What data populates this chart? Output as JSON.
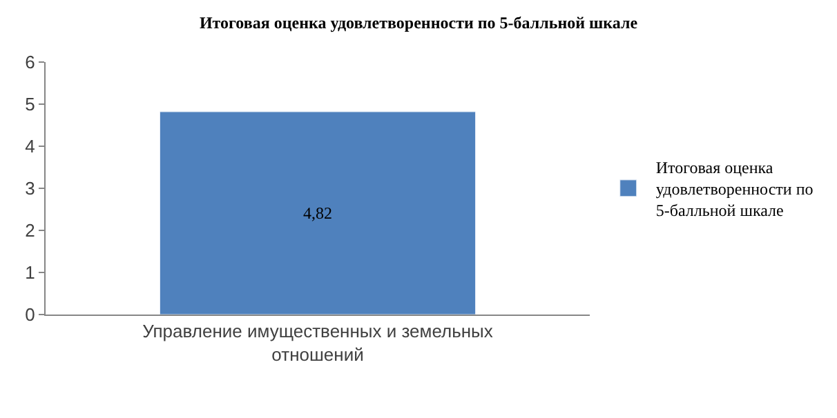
{
  "chart_data": {
    "type": "bar",
    "title": "Итоговая оценка удовлетворенности по 5-балльной шкале",
    "categories": [
      "Управление имущественных и земельных отношений"
    ],
    "series": [
      {
        "name": "Итоговая оценка удовлетворенности по 5-балльной шкале",
        "color": "#4f81bd",
        "values": [
          4.82
        ],
        "value_labels": [
          "4,82"
        ]
      }
    ],
    "ylim": [
      0,
      6
    ],
    "yticks": [
      0,
      1,
      2,
      3,
      4,
      5,
      6
    ],
    "legend": "right"
  }
}
